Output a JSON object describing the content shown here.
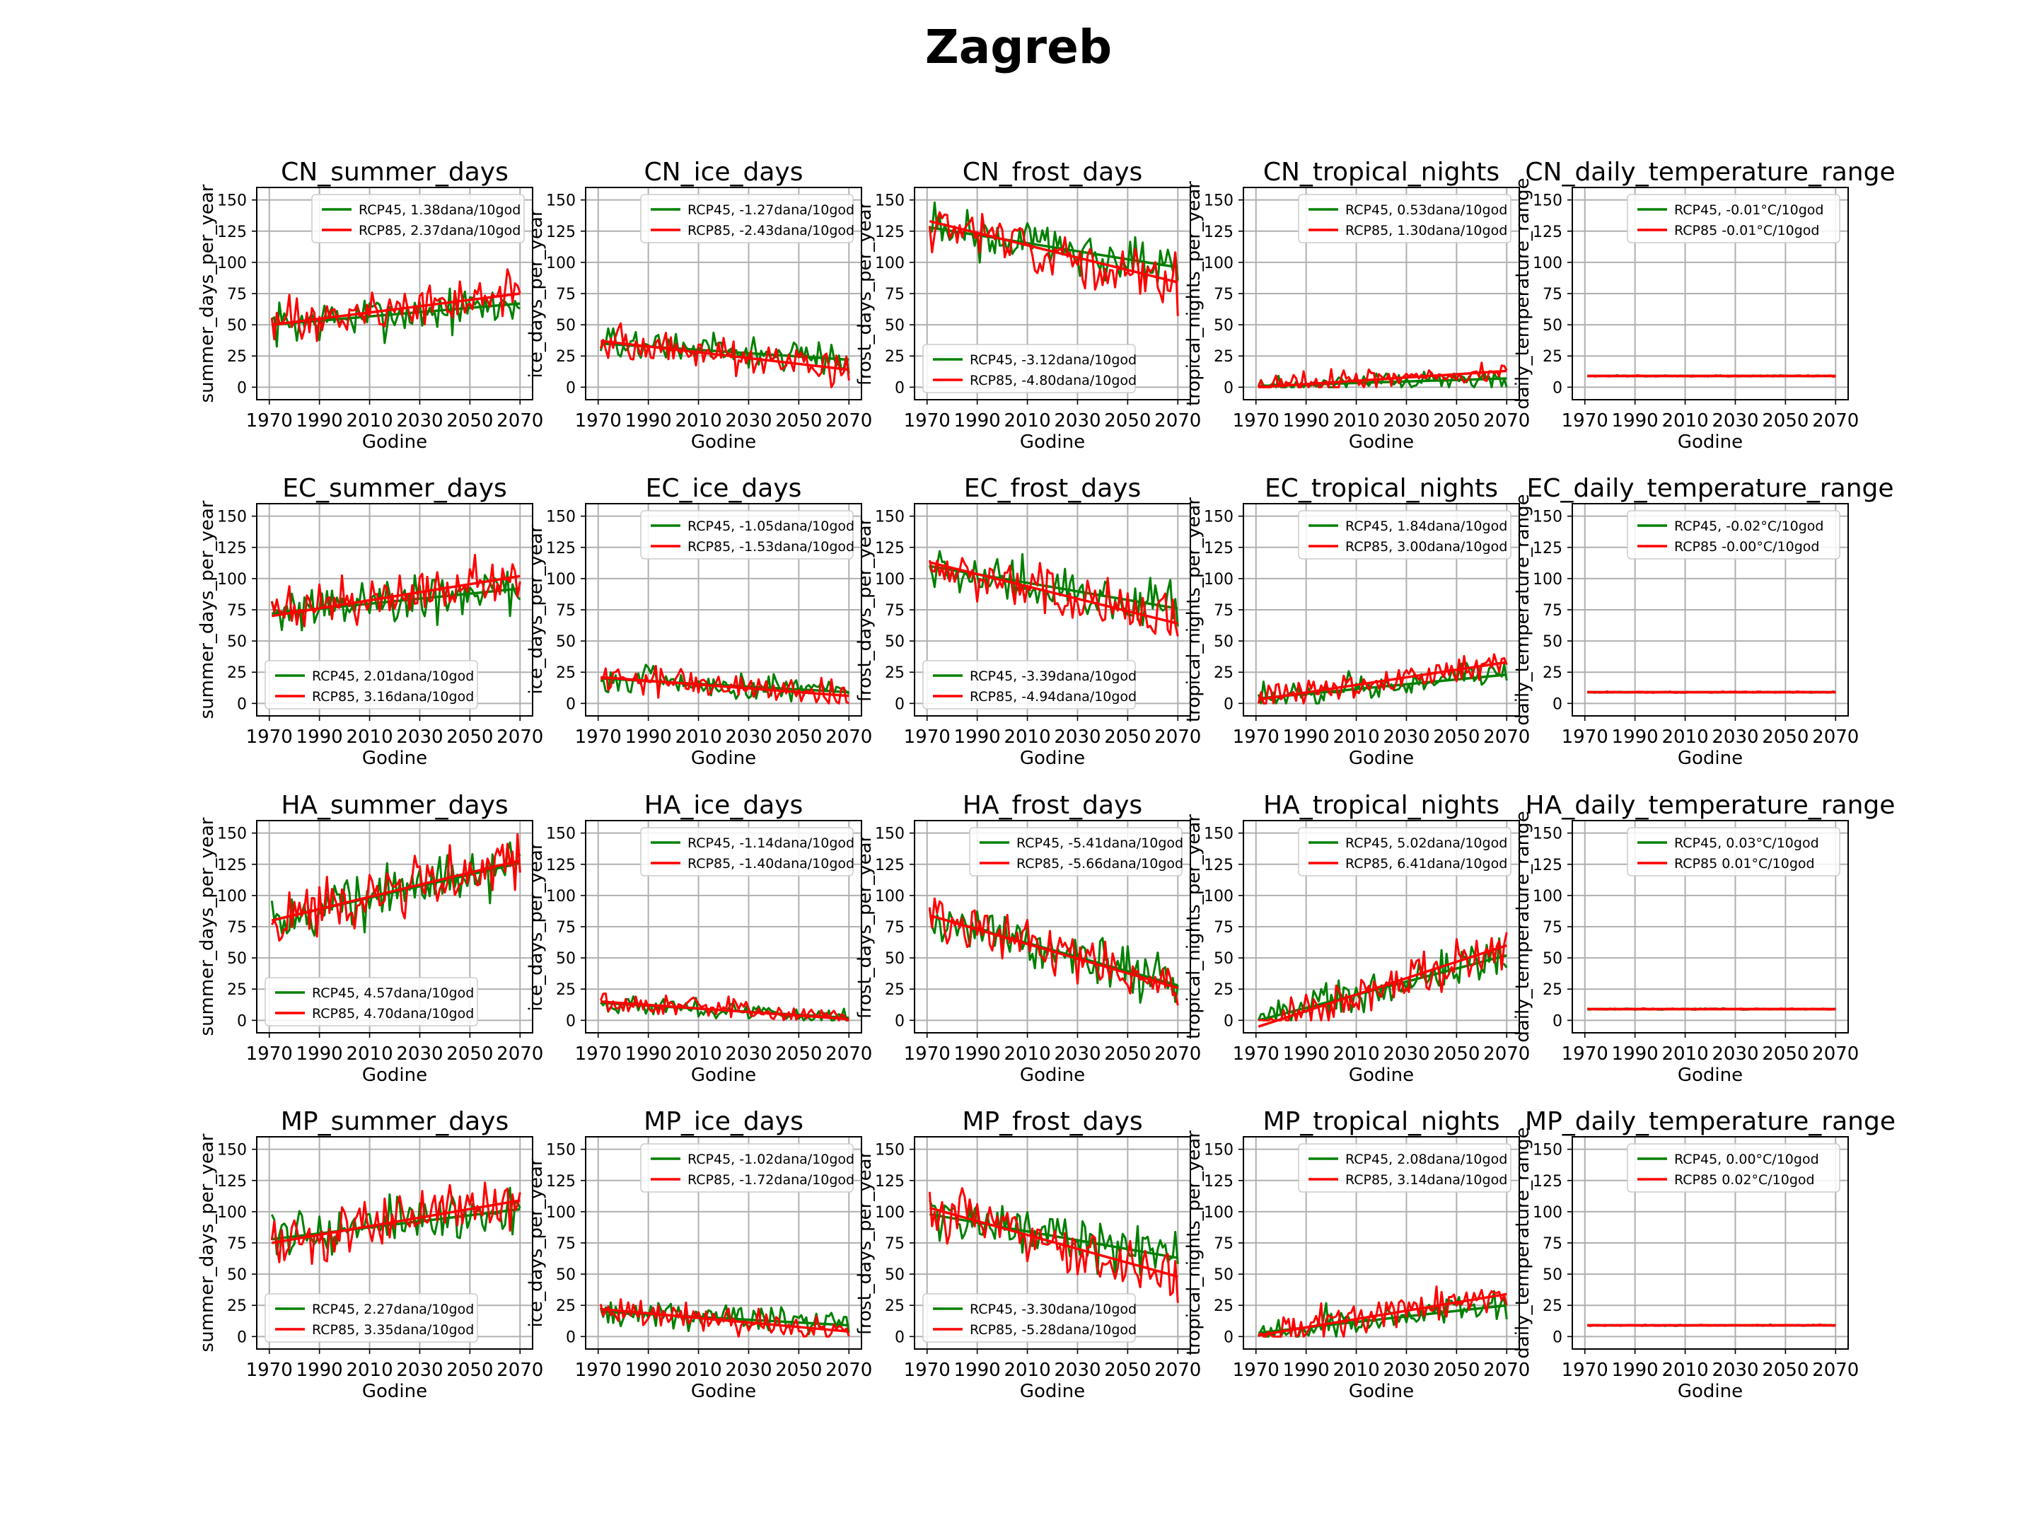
{
  "figure_title": "Zagreb",
  "chart_data": [
    {
      "type": "line",
      "title": "CN_summer_days",
      "xlabel": "Godine",
      "ylabel": "summer_days_per_year",
      "ylim": [
        -10,
        160
      ],
      "xlim": [
        1965,
        2075
      ],
      "yticks": [
        0,
        25,
        50,
        75,
        100,
        125,
        150
      ],
      "xticks": [
        1970,
        1990,
        2010,
        2030,
        2050,
        2070
      ],
      "legend_loc": "top-right",
      "series": [
        {
          "name": "RCP45, 1.38dana/10god",
          "color": "#008000",
          "start": 50,
          "end": 67,
          "noise": 14
        },
        {
          "name": "RCP85, 2.37dana/10god",
          "color": "#ff0000",
          "start": 50,
          "end": 75,
          "noise": 14
        }
      ]
    },
    {
      "type": "line",
      "title": "CN_ice_days",
      "xlabel": "Godine",
      "ylabel": "ice_days_per_year",
      "ylim": [
        -10,
        160
      ],
      "xlim": [
        1965,
        2075
      ],
      "yticks": [
        0,
        25,
        50,
        75,
        100,
        125,
        150
      ],
      "xticks": [
        1970,
        1990,
        2010,
        2030,
        2050,
        2070
      ],
      "legend_loc": "top-right",
      "series": [
        {
          "name": "RCP45, -1.27dana/10god",
          "color": "#008000",
          "start": 35,
          "end": 22,
          "noise": 10
        },
        {
          "name": "RCP85, -2.43dana/10god",
          "color": "#ff0000",
          "start": 37,
          "end": 14,
          "noise": 11
        }
      ]
    },
    {
      "type": "line",
      "title": "CN_frost_days",
      "xlabel": "Godine",
      "ylabel": "frost_days_per_year",
      "ylim": [
        -10,
        160
      ],
      "xlim": [
        1965,
        2075
      ],
      "yticks": [
        0,
        25,
        50,
        75,
        100,
        125,
        150
      ],
      "xticks": [
        1970,
        1990,
        2010,
        2030,
        2050,
        2070
      ],
      "legend_loc": "bottom-left",
      "series": [
        {
          "name": "RCP45, -3.12dana/10god",
          "color": "#008000",
          "start": 128,
          "end": 96,
          "noise": 16
        },
        {
          "name": "RCP85, -4.80dana/10god",
          "color": "#ff0000",
          "start": 133,
          "end": 84,
          "noise": 17
        }
      ]
    },
    {
      "type": "line",
      "title": "CN_tropical_nights",
      "xlabel": "Godine",
      "ylabel": "tropical_nights_per_year",
      "ylim": [
        -10,
        160
      ],
      "xlim": [
        1965,
        2075
      ],
      "yticks": [
        0,
        25,
        50,
        75,
        100,
        125,
        150
      ],
      "xticks": [
        1970,
        1990,
        2010,
        2030,
        2050,
        2070
      ],
      "legend_loc": "top-right",
      "series": [
        {
          "name": "RCP45, 0.53dana/10god",
          "color": "#008000",
          "start": 1,
          "end": 7,
          "noise": 6
        },
        {
          "name": "RCP85, 1.30dana/10god",
          "color": "#ff0000",
          "start": 0,
          "end": 13,
          "noise": 7
        }
      ]
    },
    {
      "type": "line",
      "title": "CN_daily_temperature_range",
      "xlabel": "Godine",
      "ylabel": "daily_temperature_range",
      "ylim": [
        -10,
        160
      ],
      "xlim": [
        1965,
        2075
      ],
      "yticks": [
        0,
        25,
        50,
        75,
        100,
        125,
        150
      ],
      "xticks": [
        1970,
        1990,
        2010,
        2030,
        2050,
        2070
      ],
      "legend_loc": "top-right",
      "series": [
        {
          "name": "RCP45, -0.01°C/10god",
          "color": "#008000",
          "start": 9,
          "end": 9,
          "noise": 0.4
        },
        {
          "name": "RCP85 -0.01°C/10god",
          "color": "#ff0000",
          "start": 9,
          "end": 9,
          "noise": 0.4
        }
      ]
    },
    {
      "type": "line",
      "title": "EC_summer_days",
      "xlabel": "Godine",
      "ylabel": "summer_days_per_year",
      "ylim": [
        -10,
        160
      ],
      "xlim": [
        1965,
        2075
      ],
      "yticks": [
        0,
        25,
        50,
        75,
        100,
        125,
        150
      ],
      "xticks": [
        1970,
        1990,
        2010,
        2030,
        2050,
        2070
      ],
      "legend_loc": "bottom-left",
      "series": [
        {
          "name": "RCP45, 2.01dana/10god",
          "color": "#008000",
          "start": 72,
          "end": 92,
          "noise": 15
        },
        {
          "name": "RCP85, 3.16dana/10god",
          "color": "#ff0000",
          "start": 70,
          "end": 102,
          "noise": 16
        }
      ]
    },
    {
      "type": "line",
      "title": "EC_ice_days",
      "xlabel": "Godine",
      "ylabel": "ice_days_per_year",
      "ylim": [
        -10,
        160
      ],
      "xlim": [
        1965,
        2075
      ],
      "yticks": [
        0,
        25,
        50,
        75,
        100,
        125,
        150
      ],
      "xticks": [
        1970,
        1990,
        2010,
        2030,
        2050,
        2070
      ],
      "legend_loc": "top-right",
      "series": [
        {
          "name": "RCP45, -1.05dana/10god",
          "color": "#008000",
          "start": 20,
          "end": 9,
          "noise": 9
        },
        {
          "name": "RCP85, -1.53dana/10god",
          "color": "#ff0000",
          "start": 21,
          "end": 6,
          "noise": 9
        }
      ]
    },
    {
      "type": "line",
      "title": "EC_frost_days",
      "xlabel": "Godine",
      "ylabel": "frost_days_per_year",
      "ylim": [
        -10,
        160
      ],
      "xlim": [
        1965,
        2075
      ],
      "yticks": [
        0,
        25,
        50,
        75,
        100,
        125,
        150
      ],
      "xticks": [
        1970,
        1990,
        2010,
        2030,
        2050,
        2070
      ],
      "legend_loc": "bottom-left",
      "series": [
        {
          "name": "RCP45, -3.39dana/10god",
          "color": "#008000",
          "start": 110,
          "end": 76,
          "noise": 15
        },
        {
          "name": "RCP85, -4.94dana/10god",
          "color": "#ff0000",
          "start": 113,
          "end": 64,
          "noise": 16
        }
      ]
    },
    {
      "type": "line",
      "title": "EC_tropical_nights",
      "xlabel": "Godine",
      "ylabel": "tropical_nights_per_year",
      "ylim": [
        -10,
        160
      ],
      "xlim": [
        1965,
        2075
      ],
      "yticks": [
        0,
        25,
        50,
        75,
        100,
        125,
        150
      ],
      "xticks": [
        1970,
        1990,
        2010,
        2030,
        2050,
        2070
      ],
      "legend_loc": "top-right",
      "series": [
        {
          "name": "RCP45, 1.84dana/10god",
          "color": "#008000",
          "start": 4,
          "end": 23,
          "noise": 9
        },
        {
          "name": "RCP85, 3.00dana/10god",
          "color": "#ff0000",
          "start": 3,
          "end": 33,
          "noise": 10
        }
      ]
    },
    {
      "type": "line",
      "title": "EC_daily_temperature_range",
      "xlabel": "Godine",
      "ylabel": "daily_temperature_range",
      "ylim": [
        -10,
        160
      ],
      "xlim": [
        1965,
        2075
      ],
      "yticks": [
        0,
        25,
        50,
        75,
        100,
        125,
        150
      ],
      "xticks": [
        1970,
        1990,
        2010,
        2030,
        2050,
        2070
      ],
      "legend_loc": "top-right",
      "series": [
        {
          "name": "RCP45, -0.02°C/10god",
          "color": "#008000",
          "start": 9,
          "end": 9,
          "noise": 0.4
        },
        {
          "name": "RCP85 -0.00°C/10god",
          "color": "#ff0000",
          "start": 9,
          "end": 9,
          "noise": 0.4
        }
      ]
    },
    {
      "type": "line",
      "title": "HA_summer_days",
      "xlabel": "Godine",
      "ylabel": "summer_days_per_year",
      "ylim": [
        -10,
        160
      ],
      "xlim": [
        1965,
        2075
      ],
      "yticks": [
        0,
        25,
        50,
        75,
        100,
        125,
        150
      ],
      "xticks": [
        1970,
        1990,
        2010,
        2030,
        2050,
        2070
      ],
      "legend_loc": "bottom-left",
      "series": [
        {
          "name": "RCP45, 4.57dana/10god",
          "color": "#008000",
          "start": 80,
          "end": 126,
          "noise": 16
        },
        {
          "name": "RCP85, 4.70dana/10god",
          "color": "#ff0000",
          "start": 80,
          "end": 128,
          "noise": 17
        }
      ]
    },
    {
      "type": "line",
      "title": "HA_ice_days",
      "xlabel": "Godine",
      "ylabel": "ice_days_per_year",
      "ylim": [
        -10,
        160
      ],
      "xlim": [
        1965,
        2075
      ],
      "yticks": [
        0,
        25,
        50,
        75,
        100,
        125,
        150
      ],
      "xticks": [
        1970,
        1990,
        2010,
        2030,
        2050,
        2070
      ],
      "legend_loc": "top-right",
      "series": [
        {
          "name": "RCP45, -1.14dana/10god",
          "color": "#008000",
          "start": 14,
          "end": 2,
          "noise": 6
        },
        {
          "name": "RCP85, -1.40dana/10god",
          "color": "#ff0000",
          "start": 15,
          "end": 1,
          "noise": 7
        }
      ]
    },
    {
      "type": "line",
      "title": "HA_frost_days",
      "xlabel": "Godine",
      "ylabel": "frost_days_per_year",
      "ylim": [
        -10,
        160
      ],
      "xlim": [
        1965,
        2075
      ],
      "yticks": [
        0,
        25,
        50,
        75,
        100,
        125,
        150
      ],
      "xticks": [
        1970,
        1990,
        2010,
        2030,
        2050,
        2070
      ],
      "legend_loc": "top-right",
      "series": [
        {
          "name": "RCP45, -5.41dana/10god",
          "color": "#008000",
          "start": 84,
          "end": 28,
          "noise": 14
        },
        {
          "name": "RCP85, -5.66dana/10god",
          "color": "#ff0000",
          "start": 84,
          "end": 26,
          "noise": 15
        }
      ]
    },
    {
      "type": "line",
      "title": "HA_tropical_nights",
      "xlabel": "Godine",
      "ylabel": "tropical_nights_per_year",
      "ylim": [
        -10,
        160
      ],
      "xlim": [
        1965,
        2075
      ],
      "yticks": [
        0,
        25,
        50,
        75,
        100,
        125,
        150
      ],
      "xticks": [
        1970,
        1990,
        2010,
        2030,
        2050,
        2070
      ],
      "legend_loc": "top-right",
      "series": [
        {
          "name": "RCP45, 5.02dana/10god",
          "color": "#008000",
          "start": 0,
          "end": 52,
          "noise": 12
        },
        {
          "name": "RCP85, 6.41dana/10god",
          "color": "#ff0000",
          "start": -5,
          "end": 60,
          "noise": 14
        }
      ]
    },
    {
      "type": "line",
      "title": "HA_daily_temperature_range",
      "xlabel": "Godine",
      "ylabel": "daily_temperature_range",
      "ylim": [
        -10,
        160
      ],
      "xlim": [
        1965,
        2075
      ],
      "yticks": [
        0,
        25,
        50,
        75,
        100,
        125,
        150
      ],
      "xticks": [
        1970,
        1990,
        2010,
        2030,
        2050,
        2070
      ],
      "legend_loc": "top-right",
      "series": [
        {
          "name": "RCP45, 0.03°C/10god",
          "color": "#008000",
          "start": 9,
          "end": 9,
          "noise": 0.4
        },
        {
          "name": "RCP85 0.01°C/10god",
          "color": "#ff0000",
          "start": 9,
          "end": 9,
          "noise": 0.4
        }
      ]
    },
    {
      "type": "line",
      "title": "MP_summer_days",
      "xlabel": "Godine",
      "ylabel": "summer_days_per_year",
      "ylim": [
        -10,
        160
      ],
      "xlim": [
        1965,
        2075
      ],
      "yticks": [
        0,
        25,
        50,
        75,
        100,
        125,
        150
      ],
      "xticks": [
        1970,
        1990,
        2010,
        2030,
        2050,
        2070
      ],
      "legend_loc": "bottom-left",
      "series": [
        {
          "name": "RCP45, 2.27dana/10god",
          "color": "#008000",
          "start": 78,
          "end": 102,
          "noise": 15
        },
        {
          "name": "RCP85, 3.35dana/10god",
          "color": "#ff0000",
          "start": 75,
          "end": 109,
          "noise": 17
        }
      ]
    },
    {
      "type": "line",
      "title": "MP_ice_days",
      "xlabel": "Godine",
      "ylabel": "ice_days_per_year",
      "ylim": [
        -10,
        160
      ],
      "xlim": [
        1965,
        2075
      ],
      "yticks": [
        0,
        25,
        50,
        75,
        100,
        125,
        150
      ],
      "xticks": [
        1970,
        1990,
        2010,
        2030,
        2050,
        2070
      ],
      "legend_loc": "top-right",
      "series": [
        {
          "name": "RCP45, -1.02dana/10god",
          "color": "#008000",
          "start": 20,
          "end": 9,
          "noise": 8
        },
        {
          "name": "RCP85, -1.72dana/10god",
          "color": "#ff0000",
          "start": 22,
          "end": 4,
          "noise": 9
        }
      ]
    },
    {
      "type": "line",
      "title": "MP_frost_days",
      "xlabel": "Godine",
      "ylabel": "frost_days_per_year",
      "ylim": [
        -10,
        160
      ],
      "xlim": [
        1965,
        2075
      ],
      "yticks": [
        0,
        25,
        50,
        75,
        100,
        125,
        150
      ],
      "xticks": [
        1970,
        1990,
        2010,
        2030,
        2050,
        2070
      ],
      "legend_loc": "bottom-left",
      "series": [
        {
          "name": "RCP45, -3.30dana/10god",
          "color": "#008000",
          "start": 98,
          "end": 63,
          "noise": 16
        },
        {
          "name": "RCP85, -5.28dana/10god",
          "color": "#ff0000",
          "start": 103,
          "end": 48,
          "noise": 17
        }
      ]
    },
    {
      "type": "line",
      "title": "MP_tropical_nights",
      "xlabel": "Godine",
      "ylabel": "tropical_nights_per_year",
      "ylim": [
        -10,
        160
      ],
      "xlim": [
        1965,
        2075
      ],
      "yticks": [
        0,
        25,
        50,
        75,
        100,
        125,
        150
      ],
      "xticks": [
        1970,
        1990,
        2010,
        2030,
        2050,
        2070
      ],
      "legend_loc": "top-right",
      "series": [
        {
          "name": "RCP45, 2.08dana/10god",
          "color": "#008000",
          "start": 3,
          "end": 25,
          "noise": 10
        },
        {
          "name": "RCP85, 3.14dana/10god",
          "color": "#ff0000",
          "start": 1,
          "end": 34,
          "noise": 11
        }
      ]
    },
    {
      "type": "line",
      "title": "MP_daily_temperature_range",
      "xlabel": "Godine",
      "ylabel": "daily_temperature_range",
      "ylim": [
        -10,
        160
      ],
      "xlim": [
        1965,
        2075
      ],
      "yticks": [
        0,
        25,
        50,
        75,
        100,
        125,
        150
      ],
      "xticks": [
        1970,
        1990,
        2010,
        2030,
        2050,
        2070
      ],
      "legend_loc": "top-right",
      "series": [
        {
          "name": "RCP45, 0.00°C/10god",
          "color": "#008000",
          "start": 9,
          "end": 9,
          "noise": 0.4
        },
        {
          "name": "RCP85 0.02°C/10god",
          "color": "#ff0000",
          "start": 9,
          "end": 9,
          "noise": 0.4
        }
      ]
    }
  ]
}
